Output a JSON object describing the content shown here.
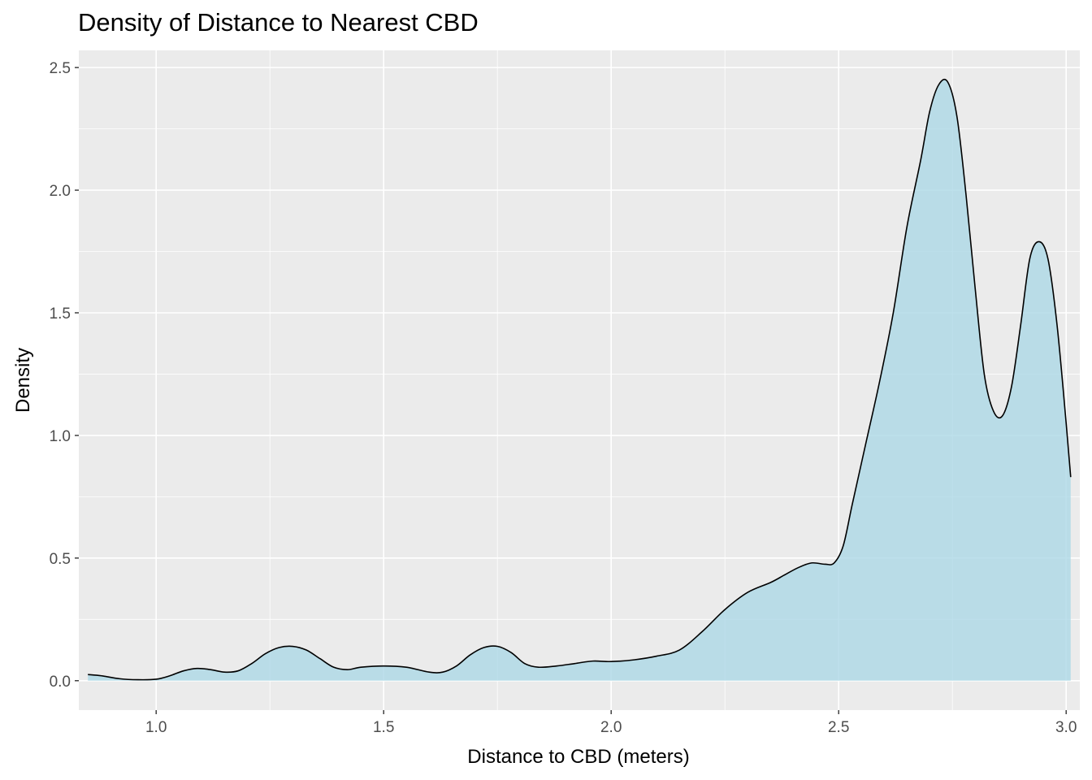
{
  "chart_data": {
    "type": "area",
    "title": "Density of Distance to Nearest CBD",
    "xlabel": "Distance to CBD (meters)",
    "ylabel": "Density",
    "xlim": [
      0.83,
      3.03
    ],
    "ylim": [
      -0.12,
      2.57
    ],
    "x_ticks": [
      1.0,
      1.5,
      2.0,
      2.5,
      3.0
    ],
    "x_tick_labels": [
      "1.0",
      "1.5",
      "2.0",
      "2.5",
      "3.0"
    ],
    "y_ticks": [
      0.0,
      0.5,
      1.0,
      1.5,
      2.0,
      2.5
    ],
    "y_tick_labels": [
      "0.0",
      "0.5",
      "1.0",
      "1.5",
      "2.0",
      "2.5"
    ],
    "grid": true,
    "legend": "none",
    "fill_color": "#add8e6",
    "line_color": "#000000",
    "panel_background": "#ebebeb",
    "series": [
      {
        "x": [
          0.85,
          0.88,
          0.92,
          0.96,
          1.0,
          1.03,
          1.06,
          1.09,
          1.12,
          1.15,
          1.18,
          1.21,
          1.24,
          1.27,
          1.3,
          1.33,
          1.36,
          1.39,
          1.42,
          1.45,
          1.5,
          1.55,
          1.6,
          1.63,
          1.66,
          1.69,
          1.72,
          1.75,
          1.78,
          1.81,
          1.84,
          1.88,
          1.92,
          1.96,
          2.0,
          2.05,
          2.1,
          2.15,
          2.2,
          2.25,
          2.3,
          2.35,
          2.38,
          2.41,
          2.44,
          2.47,
          2.49,
          2.51,
          2.53,
          2.56,
          2.59,
          2.62,
          2.65,
          2.68,
          2.7,
          2.72,
          2.74,
          2.76,
          2.78,
          2.8,
          2.82,
          2.84,
          2.86,
          2.88,
          2.9,
          2.92,
          2.94,
          2.96,
          2.98,
          3.0,
          3.01
        ],
        "y": [
          0.025,
          0.02,
          0.008,
          0.004,
          0.006,
          0.02,
          0.04,
          0.05,
          0.045,
          0.035,
          0.04,
          0.07,
          0.11,
          0.135,
          0.14,
          0.125,
          0.09,
          0.055,
          0.045,
          0.055,
          0.06,
          0.055,
          0.035,
          0.035,
          0.06,
          0.105,
          0.135,
          0.14,
          0.115,
          0.07,
          0.055,
          0.06,
          0.07,
          0.08,
          0.078,
          0.085,
          0.1,
          0.125,
          0.2,
          0.29,
          0.36,
          0.4,
          0.43,
          0.46,
          0.48,
          0.475,
          0.48,
          0.55,
          0.72,
          0.97,
          1.22,
          1.5,
          1.85,
          2.12,
          2.32,
          2.43,
          2.44,
          2.3,
          1.98,
          1.6,
          1.25,
          1.1,
          1.08,
          1.2,
          1.45,
          1.72,
          1.79,
          1.72,
          1.45,
          1.05,
          0.83
        ]
      }
    ]
  }
}
